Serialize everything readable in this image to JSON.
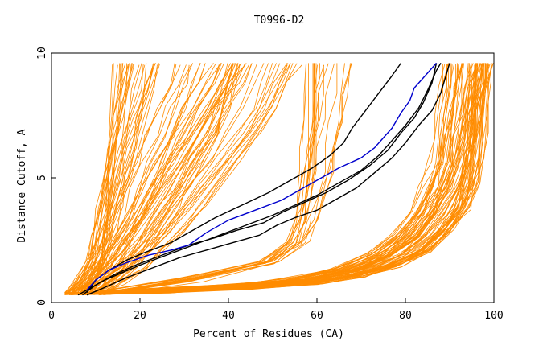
{
  "chart_data": {
    "type": "line",
    "title": "T0996-D2",
    "xlabel": "Percent of Residues (CA)",
    "ylabel": "Distance Cutoff, A",
    "xlim": [
      0,
      100
    ],
    "ylim": [
      0,
      10
    ],
    "x_ticks": [
      0,
      20,
      40,
      60,
      80,
      100
    ],
    "y_ticks": [
      0,
      5,
      10
    ],
    "grid": false,
    "legend": "none",
    "colors": {
      "bundle": "#ff8c00",
      "black": "#000000",
      "blue": "#0000cd"
    },
    "highlight_series": [
      {
        "name": "black-1",
        "color": "#000000",
        "points": [
          [
            6,
            0.3
          ],
          [
            9,
            0.6
          ],
          [
            12,
            0.9
          ],
          [
            16,
            1.2
          ],
          [
            20,
            1.5
          ],
          [
            26,
            1.9
          ],
          [
            32,
            2.3
          ],
          [
            38,
            2.7
          ],
          [
            44,
            3.1
          ],
          [
            50,
            3.5
          ],
          [
            55,
            3.9
          ],
          [
            60,
            4.3
          ],
          [
            65,
            4.8
          ],
          [
            70,
            5.3
          ],
          [
            74,
            5.9
          ],
          [
            77,
            6.5
          ],
          [
            80,
            7.1
          ],
          [
            83,
            7.8
          ],
          [
            85,
            8.5
          ],
          [
            87,
            9.3
          ],
          [
            88,
            9.6
          ]
        ]
      },
      {
        "name": "black-2",
        "color": "#000000",
        "points": [
          [
            7,
            0.3
          ],
          [
            10,
            0.7
          ],
          [
            14,
            1.1
          ],
          [
            19,
            1.5
          ],
          [
            25,
            1.9
          ],
          [
            31,
            2.3
          ],
          [
            37,
            2.6
          ],
          [
            42,
            2.9
          ],
          [
            48,
            3.2
          ],
          [
            52,
            3.6
          ],
          [
            57,
            4.0
          ],
          [
            62,
            4.4
          ],
          [
            67,
            4.9
          ],
          [
            72,
            5.5
          ],
          [
            76,
            6.1
          ],
          [
            79,
            6.8
          ],
          [
            82,
            7.4
          ],
          [
            84,
            8.0
          ],
          [
            86,
            8.8
          ],
          [
            87,
            9.6
          ]
        ]
      },
      {
        "name": "black-3",
        "color": "#000000",
        "points": [
          [
            8,
            0.3
          ],
          [
            12,
            0.6
          ],
          [
            17,
            1.0
          ],
          [
            23,
            1.4
          ],
          [
            29,
            1.8
          ],
          [
            35,
            2.1
          ],
          [
            41,
            2.4
          ],
          [
            47,
            2.7
          ],
          [
            51,
            3.1
          ],
          [
            55,
            3.4
          ],
          [
            60,
            3.7
          ],
          [
            64,
            4.1
          ],
          [
            69,
            4.6
          ],
          [
            73,
            5.2
          ],
          [
            77,
            5.8
          ],
          [
            80,
            6.4
          ],
          [
            83,
            7.1
          ],
          [
            86,
            7.7
          ],
          [
            88,
            8.4
          ],
          [
            89,
            9.0
          ],
          [
            90,
            9.6
          ]
        ]
      },
      {
        "name": "black-4",
        "color": "#000000",
        "points": [
          [
            8,
            0.4
          ],
          [
            10,
            0.9
          ],
          [
            13,
            1.3
          ],
          [
            17,
            1.7
          ],
          [
            21,
            2.0
          ],
          [
            27,
            2.4
          ],
          [
            32,
            2.9
          ],
          [
            37,
            3.4
          ],
          [
            43,
            3.9
          ],
          [
            49,
            4.4
          ],
          [
            54,
            4.9
          ],
          [
            59,
            5.4
          ],
          [
            63,
            5.9
          ],
          [
            66,
            6.4
          ],
          [
            68,
            7.0
          ],
          [
            71,
            7.7
          ],
          [
            74,
            8.4
          ],
          [
            77,
            9.1
          ],
          [
            79,
            9.6
          ]
        ]
      },
      {
        "name": "blue",
        "color": "#0000cd",
        "points": [
          [
            8,
            0.5
          ],
          [
            10,
            0.9
          ],
          [
            13,
            1.3
          ],
          [
            17,
            1.6
          ],
          [
            22,
            1.9
          ],
          [
            27,
            2.1
          ],
          [
            31,
            2.3
          ],
          [
            35,
            2.8
          ],
          [
            40,
            3.3
          ],
          [
            46,
            3.7
          ],
          [
            52,
            4.1
          ],
          [
            57,
            4.6
          ],
          [
            61,
            5.0
          ],
          [
            65,
            5.4
          ],
          [
            70,
            5.8
          ],
          [
            73,
            6.2
          ],
          [
            75,
            6.6
          ],
          [
            77,
            7.0
          ],
          [
            79,
            7.6
          ],
          [
            81,
            8.1
          ],
          [
            82,
            8.6
          ],
          [
            84,
            9.0
          ],
          [
            86,
            9.4
          ],
          [
            87,
            9.6
          ]
        ]
      }
    ],
    "bundle_groups": [
      {
        "name": "left",
        "count": 30,
        "knots": [
          [
            4,
            0.3
          ],
          [
            6,
            0.8
          ],
          [
            8,
            1.6
          ],
          [
            9,
            2.6
          ],
          [
            10,
            3.8
          ],
          [
            11,
            5.0
          ],
          [
            12,
            6.2
          ],
          [
            13,
            7.4
          ],
          [
            14,
            8.6
          ],
          [
            15,
            9.6
          ]
        ],
        "dx": [
          -2,
          5
        ],
        "dxTop": [
          -1,
          10
        ]
      },
      {
        "name": "left-mid",
        "count": 30,
        "knots": [
          [
            5,
            0.3
          ],
          [
            8,
            0.8
          ],
          [
            11,
            1.5
          ],
          [
            14,
            2.4
          ],
          [
            17,
            3.4
          ],
          [
            20,
            4.5
          ],
          [
            23,
            5.6
          ],
          [
            26,
            6.7
          ],
          [
            29,
            7.8
          ],
          [
            32,
            8.8
          ],
          [
            34,
            9.6
          ]
        ],
        "dx": [
          -3,
          6
        ],
        "dxTop": [
          -6,
          12
        ]
      },
      {
        "name": "mid",
        "count": 25,
        "knots": [
          [
            7,
            0.3
          ],
          [
            11,
            0.8
          ],
          [
            16,
            1.4
          ],
          [
            20,
            2.1
          ],
          [
            24,
            2.9
          ],
          [
            28,
            3.8
          ],
          [
            32,
            4.8
          ],
          [
            36,
            5.8
          ],
          [
            40,
            6.8
          ],
          [
            43,
            7.8
          ],
          [
            45,
            8.8
          ],
          [
            47,
            9.6
          ]
        ],
        "dx": [
          -3,
          6
        ],
        "dxTop": [
          -8,
          10
        ]
      },
      {
        "name": "center",
        "count": 18,
        "knots": [
          [
            10,
            0.3
          ],
          [
            30,
            0.9
          ],
          [
            48,
            1.6
          ],
          [
            54,
            2.4
          ],
          [
            56,
            3.3
          ],
          [
            57,
            4.3
          ],
          [
            58,
            5.3
          ],
          [
            58,
            6.3
          ],
          [
            59,
            7.3
          ],
          [
            59,
            8.3
          ],
          [
            60,
            9.6
          ]
        ],
        "dx": [
          -3,
          4
        ],
        "dxTop": [
          -5,
          8
        ]
      },
      {
        "name": "right-fan",
        "count": 45,
        "knots": [
          [
            6,
            0.3
          ],
          [
            20,
            0.45
          ],
          [
            40,
            0.65
          ],
          [
            55,
            0.9
          ],
          [
            66,
            1.3
          ],
          [
            74,
            1.9
          ],
          [
            80,
            2.7
          ],
          [
            84,
            3.6
          ],
          [
            87,
            4.6
          ],
          [
            89,
            5.6
          ],
          [
            90,
            6.6
          ],
          [
            91,
            7.6
          ],
          [
            92,
            8.6
          ],
          [
            93,
            9.6
          ]
        ],
        "dx": [
          -4,
          6
        ],
        "dxTop": [
          -5,
          7
        ]
      },
      {
        "name": "right-edge",
        "count": 30,
        "knots": [
          [
            6,
            0.3
          ],
          [
            25,
            0.45
          ],
          [
            45,
            0.6
          ],
          [
            60,
            0.8
          ],
          [
            70,
            1.1
          ],
          [
            78,
            1.5
          ],
          [
            85,
            2.1
          ],
          [
            90,
            2.9
          ],
          [
            94,
            3.8
          ],
          [
            96,
            4.8
          ],
          [
            97,
            5.8
          ],
          [
            98,
            6.8
          ],
          [
            98,
            7.8
          ],
          [
            99,
            8.8
          ],
          [
            99,
            9.6
          ]
        ],
        "dx": [
          -3,
          2
        ],
        "dxTop": [
          -5,
          1
        ]
      }
    ]
  }
}
